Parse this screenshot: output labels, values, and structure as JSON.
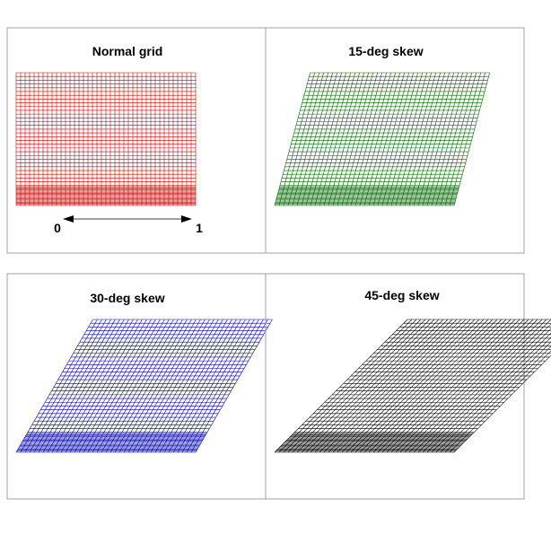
{
  "panels": [
    {
      "title": "Normal grid",
      "skew_deg": 0,
      "color": "#cc0000"
    },
    {
      "title": "15-deg skew",
      "skew_deg": 15,
      "color": "#006600"
    },
    {
      "title": "30-deg skew",
      "skew_deg": 30,
      "color": "#0000aa"
    },
    {
      "title": "45-deg skew",
      "skew_deg": 45,
      "color": "#000000"
    }
  ],
  "scale": {
    "start_label": "0",
    "end_label": "1"
  }
}
